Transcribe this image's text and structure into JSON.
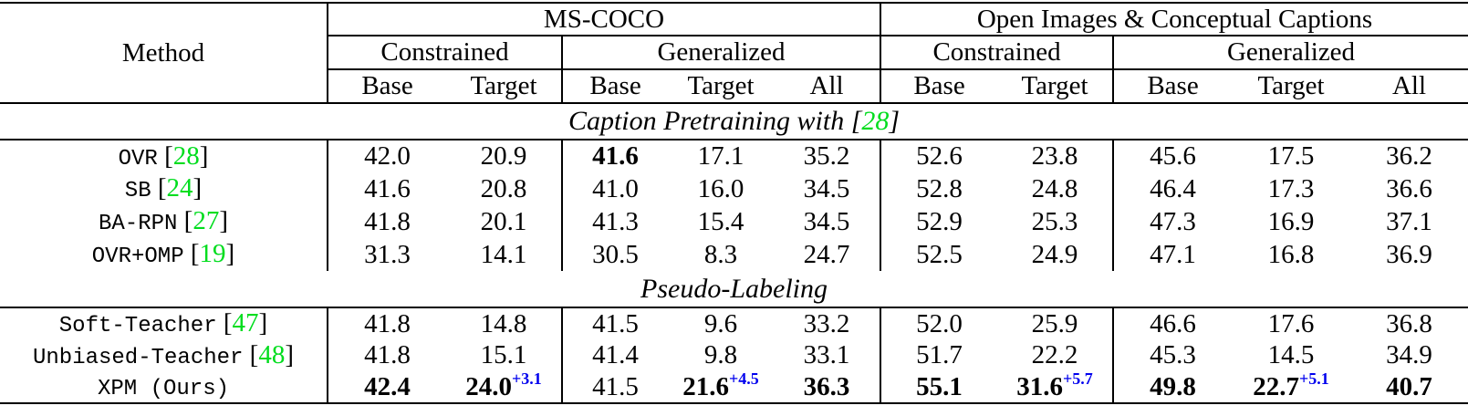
{
  "colors": {
    "citation_green": "#00DD1E",
    "delta_blue": "#0000EE"
  },
  "header": {
    "method": "Method",
    "groups": [
      "MS-COCO",
      "Open Images & Conceptual Captions"
    ],
    "subgroups": [
      "Constrained",
      "Generalized",
      "Constrained",
      "Generalized"
    ],
    "columns": [
      "Base",
      "Target",
      "Base",
      "Target",
      "All",
      "Base",
      "Target",
      "Base",
      "Target",
      "All"
    ]
  },
  "sections": [
    {
      "title": "Caption Pretraining with",
      "cite": "28",
      "rows": [
        {
          "method": "OVR",
          "cite": "28",
          "values": [
            "42.0",
            "20.9",
            "41.6",
            "17.1",
            "35.2",
            "52.6",
            "23.8",
            "45.6",
            "17.5",
            "36.2"
          ],
          "bold": [
            2
          ],
          "sups": {}
        },
        {
          "method": "SB",
          "cite": "24",
          "values": [
            "41.6",
            "20.8",
            "41.0",
            "16.0",
            "34.5",
            "52.8",
            "24.8",
            "46.4",
            "17.3",
            "36.6"
          ],
          "bold": [],
          "sups": {}
        },
        {
          "method": "BA-RPN",
          "cite": "27",
          "values": [
            "41.8",
            "20.1",
            "41.3",
            "15.4",
            "34.5",
            "52.9",
            "25.3",
            "47.3",
            "16.9",
            "37.1"
          ],
          "bold": [],
          "sups": {}
        },
        {
          "method": "OVR+OMP",
          "cite": "19",
          "values": [
            "31.3",
            "14.1",
            "30.5",
            "8.3",
            "24.7",
            "52.5",
            "24.9",
            "47.1",
            "16.8",
            "36.9"
          ],
          "bold": [],
          "sups": {}
        }
      ]
    },
    {
      "title": "Pseudo-Labeling",
      "cite": null,
      "rows": [
        {
          "method": "Soft-Teacher",
          "cite": "47",
          "values": [
            "41.8",
            "14.8",
            "41.5",
            "9.6",
            "33.2",
            "52.0",
            "25.9",
            "46.6",
            "17.6",
            "36.8"
          ],
          "bold": [],
          "sups": {}
        },
        {
          "method": "Unbiased-Teacher",
          "cite": "48",
          "values": [
            "41.8",
            "15.1",
            "41.4",
            "9.8",
            "33.1",
            "51.7",
            "22.2",
            "45.3",
            "14.5",
            "34.9"
          ],
          "bold": [],
          "sups": {}
        },
        {
          "method": "XPM (Ours)",
          "cite": null,
          "values": [
            "42.4",
            "24.0",
            "41.5",
            "21.6",
            "36.3",
            "55.1",
            "31.6",
            "49.8",
            "22.7",
            "40.7"
          ],
          "bold": [
            0,
            1,
            3,
            4,
            5,
            6,
            7,
            8,
            9
          ],
          "sups": {
            "1": "+3.1",
            "3": "+4.5",
            "6": "+5.7",
            "8": "+5.1"
          }
        }
      ]
    }
  ]
}
